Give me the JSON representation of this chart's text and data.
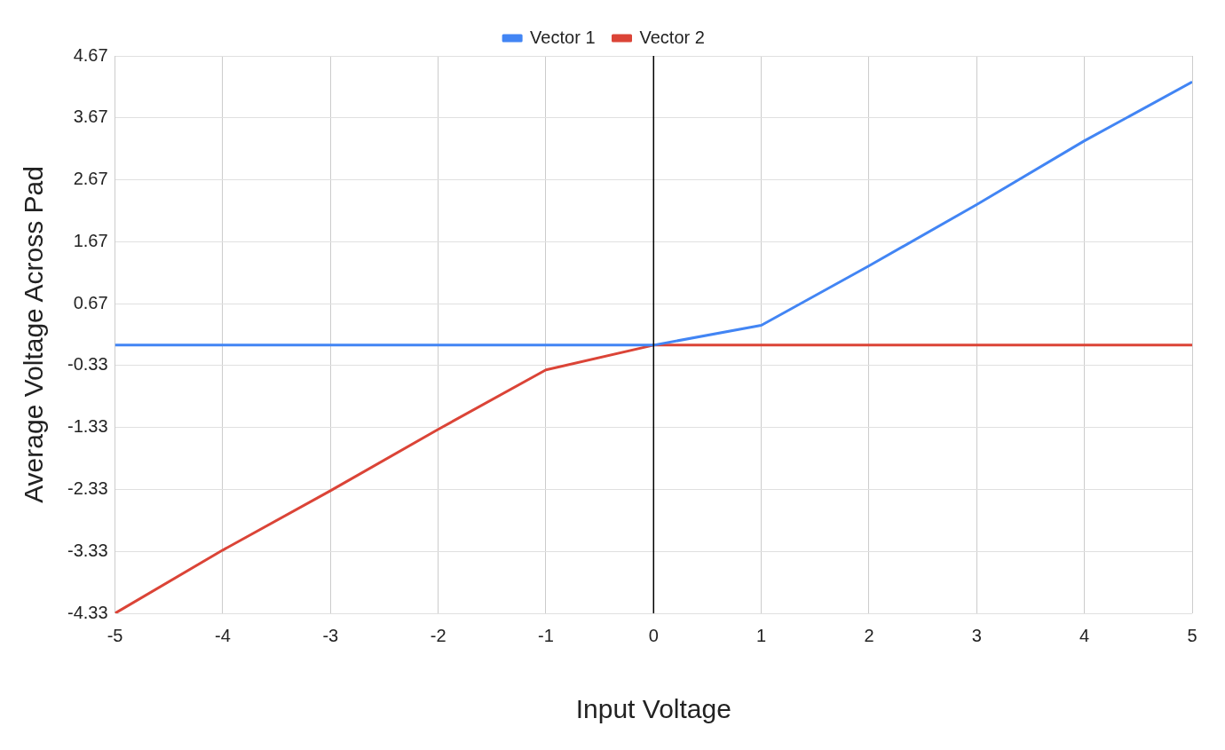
{
  "chart_data": {
    "type": "line",
    "xlabel": "Input Voltage",
    "ylabel": "Average Voltage Across Pad",
    "x": [
      -5,
      -4,
      -3,
      -2,
      -1,
      0,
      1,
      2,
      3,
      4,
      5
    ],
    "series": [
      {
        "name": "Vector 1",
        "color": "#4285f4",
        "values": [
          0,
          0,
          0,
          0,
          0,
          0,
          0.32,
          1.28,
          2.27,
          3.3,
          4.25
        ]
      },
      {
        "name": "Vector 2",
        "color": "#db4437",
        "values": [
          -4.33,
          -3.31,
          -2.35,
          -1.36,
          -0.4,
          0,
          0,
          0,
          0,
          0,
          0
        ]
      }
    ],
    "xlim": [
      -5,
      5
    ],
    "xticks": [
      -5,
      -4,
      -3,
      -2,
      -1,
      0,
      1,
      2,
      3,
      4,
      5
    ],
    "ylim": [
      -4.33,
      4.67
    ],
    "yticks": [
      -4.33,
      -3.33,
      -2.33,
      -1.33,
      -0.33,
      0.67,
      1.67,
      2.67,
      3.67,
      4.67
    ],
    "ref_lines": [
      {
        "axis": "x",
        "value": 0,
        "color": "#000000"
      }
    ],
    "grid": true,
    "legend": "top",
    "marker": "none",
    "line_style": "solid"
  }
}
